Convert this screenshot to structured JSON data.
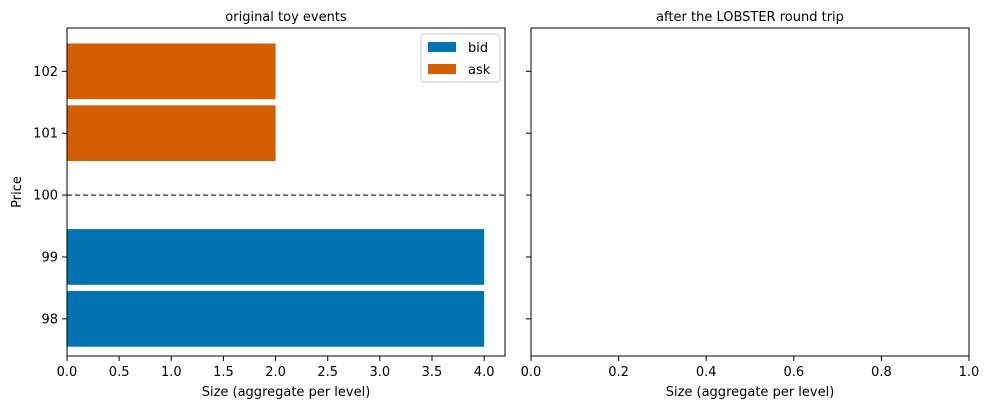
{
  "chart_data": [
    {
      "type": "bar",
      "orientation": "horizontal",
      "title": "original toy events",
      "xlabel": "Size (aggregate per level)",
      "ylabel": "Price",
      "xlim": [
        0,
        4.2
      ],
      "x_ticks": [
        "0.0",
        "0.5",
        "1.0",
        "1.5",
        "2.0",
        "2.5",
        "3.0",
        "3.5",
        "4.0"
      ],
      "categories": [
        "98",
        "99",
        "100",
        "101",
        "102"
      ],
      "series": [
        {
          "name": "bid",
          "color": "#0072b2",
          "points": [
            {
              "price": 98,
              "size": 4
            },
            {
              "price": 99,
              "size": 4
            }
          ]
        },
        {
          "name": "ask",
          "color": "#d55e00",
          "points": [
            {
              "price": 101,
              "size": 2
            },
            {
              "price": 102,
              "size": 2
            }
          ]
        }
      ],
      "reference_line": {
        "price": 100,
        "style": "dashed",
        "color": "#333333"
      },
      "legend": {
        "placement": "top-right",
        "entries": [
          "bid",
          "ask"
        ]
      },
      "grid": false
    },
    {
      "type": "bar",
      "orientation": "horizontal",
      "title": "after the LOBSTER round trip",
      "xlabel": "Size (aggregate per level)",
      "ylabel": "",
      "xlim": [
        0,
        1
      ],
      "x_ticks": [
        "0.0",
        "0.2",
        "0.4",
        "0.6",
        "0.8",
        "1.0"
      ],
      "shared_y": true,
      "series": [],
      "grid": false
    }
  ]
}
